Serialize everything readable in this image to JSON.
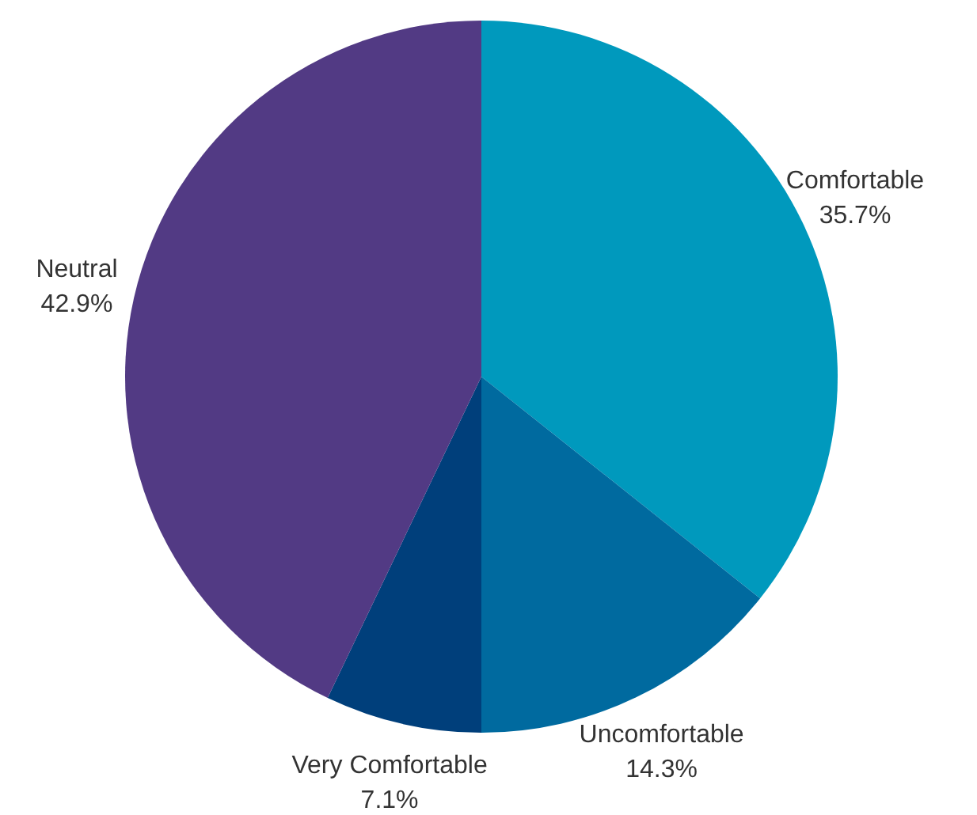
{
  "chart_data": {
    "type": "pie",
    "categories": [
      "Comfortable",
      "Uncomfortable",
      "Very Comfortable",
      "Neutral"
    ],
    "values": [
      35.7,
      14.3,
      7.1,
      42.9
    ],
    "colors": [
      "#0099bd",
      "#006a9f",
      "#003f7b",
      "#523a84"
    ],
    "value_labels": [
      "35.7%",
      "14.3%",
      "7.1%",
      "42.9%"
    ]
  }
}
